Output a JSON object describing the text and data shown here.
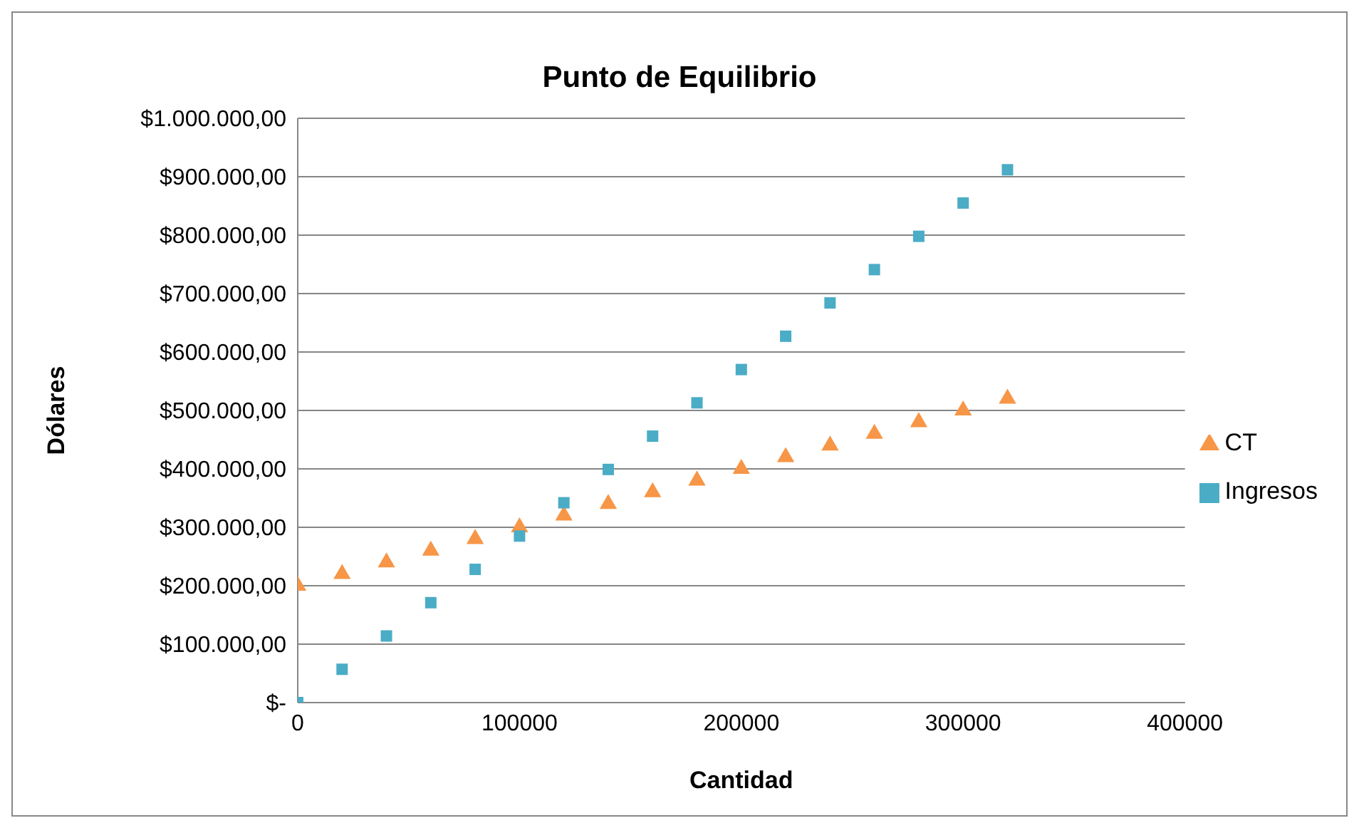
{
  "chart_data": {
    "type": "scatter",
    "title": "Punto de Equilibrio",
    "xlabel": "Cantidad",
    "ylabel": "Dólares",
    "x": [
      0,
      20000,
      40000,
      60000,
      80000,
      100000,
      120000,
      140000,
      160000,
      180000,
      200000,
      220000,
      240000,
      260000,
      280000,
      300000,
      320000
    ],
    "series": [
      {
        "name": "CT",
        "color": "#f79646",
        "marker": "triangle",
        "values": [
          200000,
          220000,
          240000,
          260000,
          280000,
          300000,
          320000,
          340000,
          360000,
          380000,
          400000,
          420000,
          440000,
          460000,
          480000,
          500000,
          520000
        ]
      },
      {
        "name": "Ingresos",
        "color": "#4bacc6",
        "marker": "square",
        "values": [
          0,
          57000,
          114000,
          171000,
          228000,
          285000,
          342000,
          399000,
          456000,
          513000,
          570000,
          627000,
          684000,
          741000,
          798000,
          855000,
          912000
        ]
      }
    ],
    "xlim": [
      0,
      400000
    ],
    "xticks": [
      0,
      100000,
      200000,
      300000,
      400000
    ],
    "ylim": [
      0,
      1000000
    ],
    "yticks": [
      {
        "value": 0,
        "label": "$-"
      },
      {
        "value": 100000,
        "label": "$100.000,00"
      },
      {
        "value": 200000,
        "label": "$200.000,00"
      },
      {
        "value": 300000,
        "label": "$300.000,00"
      },
      {
        "value": 400000,
        "label": "$400.000,00"
      },
      {
        "value": 500000,
        "label": "$500.000,00"
      },
      {
        "value": 600000,
        "label": "$600.000,00"
      },
      {
        "value": 700000,
        "label": "$700.000,00"
      },
      {
        "value": 800000,
        "label": "$800.000,00"
      },
      {
        "value": 900000,
        "label": "$900.000,00"
      },
      {
        "value": 1000000,
        "label": "$1.000.000,00"
      }
    ],
    "grid": "y",
    "legend": "right"
  }
}
